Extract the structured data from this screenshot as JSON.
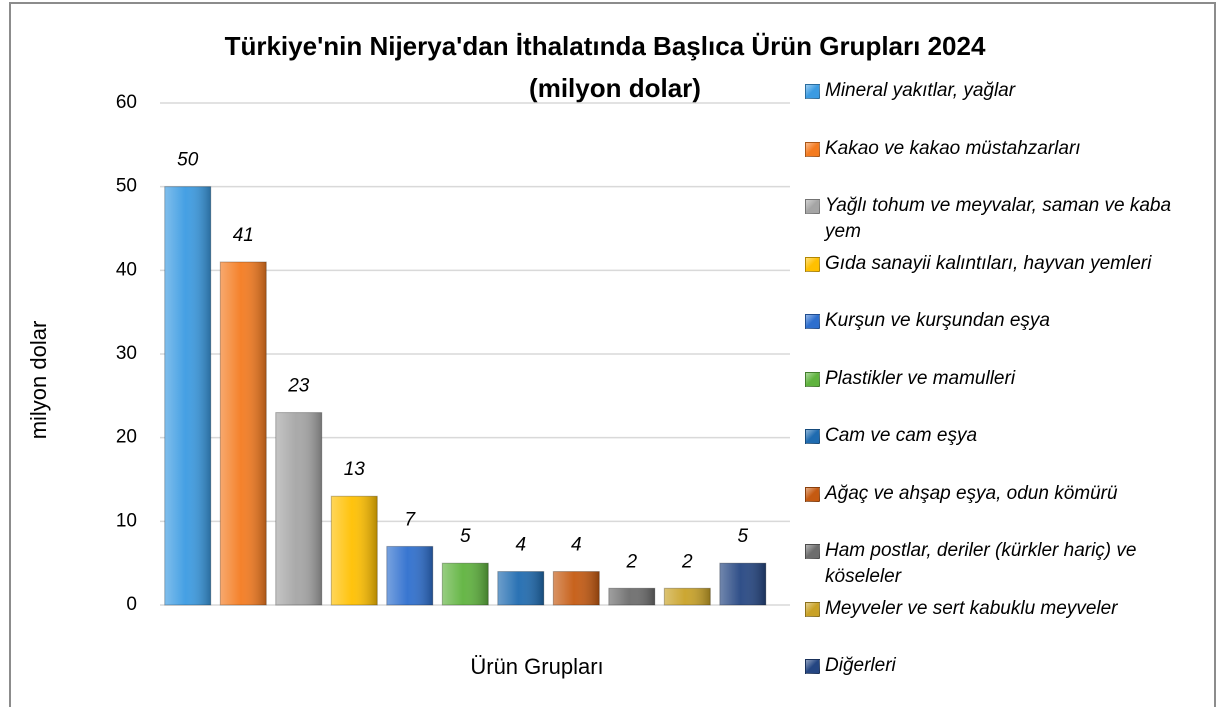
{
  "chart_data": {
    "type": "bar",
    "title": [
      "Türkiye'nin Nijerya'dan İthalatında Başlıca Ürün Grupları 2024",
      "(milyon dolar)"
    ],
    "x_label": "Ürün Grupları",
    "y_label": "milyon dolar",
    "ylim": [
      0,
      60
    ],
    "yticks": [
      0,
      10,
      20,
      30,
      40,
      50,
      60
    ],
    "grid": true,
    "legend": "right",
    "series": [
      {
        "name": "Mineral yakıtlar, yağlar",
        "color": "#3b9be2",
        "values": [
          50
        ]
      },
      {
        "name": "Kakao ve kakao müstahzarları",
        "color": "#f47b20",
        "values": [
          41
        ]
      },
      {
        "name": "Yağlı tohum ve meyvalar, saman ve kaba yem",
        "color": "#a5a5a5",
        "values": [
          23
        ]
      },
      {
        "name": "Gıda sanayii kalıntıları, hayvan yemleri",
        "color": "#ffc000",
        "values": [
          13
        ]
      },
      {
        "name": "Kurşun ve kurşundan eşya",
        "color": "#2e6fce",
        "values": [
          7
        ]
      },
      {
        "name": "Plastikler ve mamulleri",
        "color": "#5fb33e",
        "values": [
          5
        ]
      },
      {
        "name": "Cam ve cam eşya",
        "color": "#1f6bb0",
        "values": [
          4
        ]
      },
      {
        "name": "Ağaç ve ahşap eşya, odun kömürü",
        "color": "#c55a11",
        "values": [
          4
        ]
      },
      {
        "name": "Ham postlar, deriler (kürkler hariç) ve köseleler",
        "color": "#6d6d6d",
        "values": [
          2
        ]
      },
      {
        "name": "Meyveler ve sert kabuklu meyveler",
        "color": "#c9a227",
        "values": [
          2
        ]
      },
      {
        "name": "Diğerleri",
        "color": "#254682",
        "values": [
          5
        ]
      }
    ]
  }
}
